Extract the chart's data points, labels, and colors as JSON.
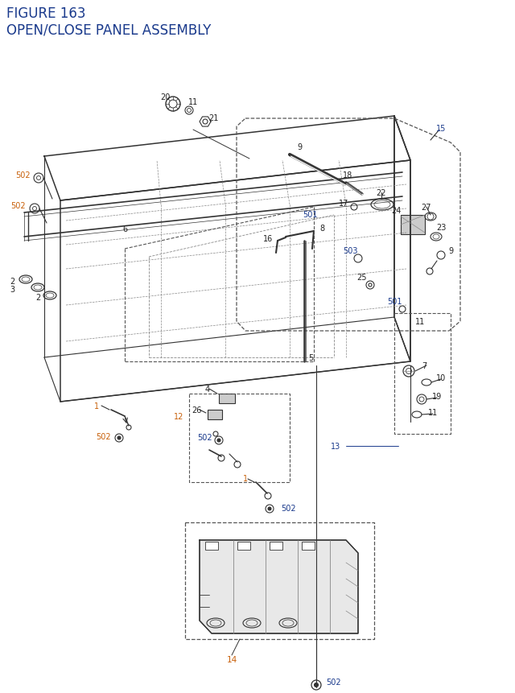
{
  "title_line1": "FIGURE 163",
  "title_line2": "OPEN/CLOSE PANEL ASSEMBLY",
  "title_color": "#1a3a8c",
  "title_fontsize": 12,
  "bg_color": "#ffffff",
  "orange": "#c8600a",
  "blue": "#1a3a8c",
  "black": "#222222",
  "dc": "#333333",
  "bc": "#555555",
  "lc": "#888888"
}
